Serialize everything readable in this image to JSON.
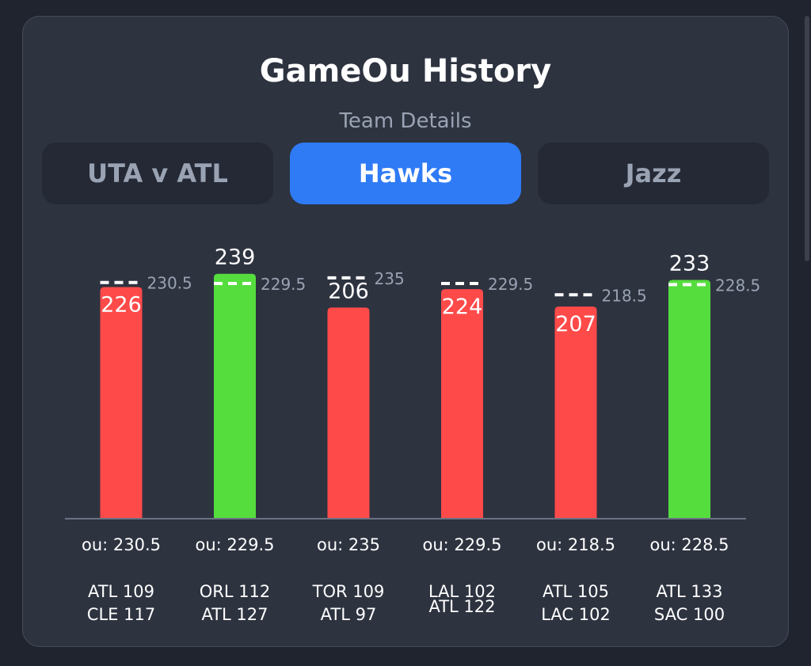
{
  "header": {
    "title": "GameOu History",
    "subtitle": "Team Details"
  },
  "tabs": [
    {
      "label": "UTA v ATL",
      "active": false
    },
    {
      "label": "Hawks",
      "active": true
    },
    {
      "label": "Jazz",
      "active": false
    }
  ],
  "colors": {
    "over": "#55dd3e",
    "under": "#ff4a4a",
    "accent": "#2f7bf6",
    "line": "#ffffff"
  },
  "chart_data": {
    "type": "bar",
    "ylim": [
      0,
      245
    ],
    "grid": false,
    "categories": [
      "ATL 109\nCLE 117",
      "ORL 112\nATL 127",
      "TOR 109\nATL 97",
      "LAL 102\nATL 122",
      "ATL 105\nLAC 102",
      "ATL 133\nSAC 100"
    ],
    "values": [
      226,
      239,
      206,
      224,
      207,
      233
    ],
    "ou_lines": [
      230.5,
      229.5,
      235,
      229.5,
      218.5,
      228.5
    ],
    "ou_labels": [
      "230.5",
      "229.5",
      "235",
      "229.5",
      "218.5",
      "228.5"
    ],
    "x_labels": [
      "ou: 230.5",
      "ou: 229.5",
      "ou: 235",
      "ou: 229.5",
      "ou: 218.5",
      "ou: 228.5"
    ],
    "results": [
      "under",
      "over",
      "under",
      "under",
      "under",
      "over"
    ],
    "value_label_position": [
      "inside",
      "above",
      "above",
      "inside",
      "inside",
      "above"
    ]
  }
}
